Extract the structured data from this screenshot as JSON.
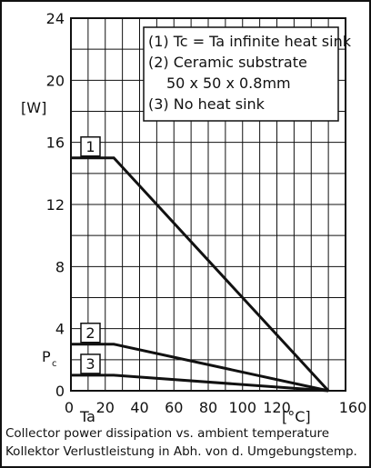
{
  "chart_data": {
    "type": "line",
    "x_ticks": [
      "0",
      "20",
      "40",
      "60",
      "80",
      "100",
      "120",
      "160"
    ],
    "y_ticks": [
      "0",
      "4",
      "8",
      "12",
      "16",
      "20",
      "24"
    ],
    "xlim": [
      0,
      160
    ],
    "ylim": [
      0,
      24
    ],
    "grid": true,
    "ylabel_unit": "[W]",
    "ylabel_symbol": "P",
    "ylabel_subscript": "c",
    "xlabel_symbol": "Ta",
    "xlabel_unit": "[°C]",
    "legend": [
      "(1) Tc = Ta infinite heat sink",
      "(2) Ceramic substrate",
      "50 x 50 x 0.8mm",
      "(3) No heat sink"
    ],
    "series": [
      {
        "name": "1",
        "x": [
          0,
          25,
          150
        ],
        "y": [
          15,
          15,
          0
        ]
      },
      {
        "name": "2",
        "x": [
          0,
          25,
          150
        ],
        "y": [
          3,
          3,
          0
        ]
      },
      {
        "name": "3",
        "x": [
          0,
          25,
          150
        ],
        "y": [
          1,
          1,
          0
        ]
      }
    ]
  },
  "caption": {
    "line1": "Collector power dissipation vs. ambient temperature",
    "line2": "Kollektor Verlustleistung in Abh. von d. Umgebungstemp."
  }
}
